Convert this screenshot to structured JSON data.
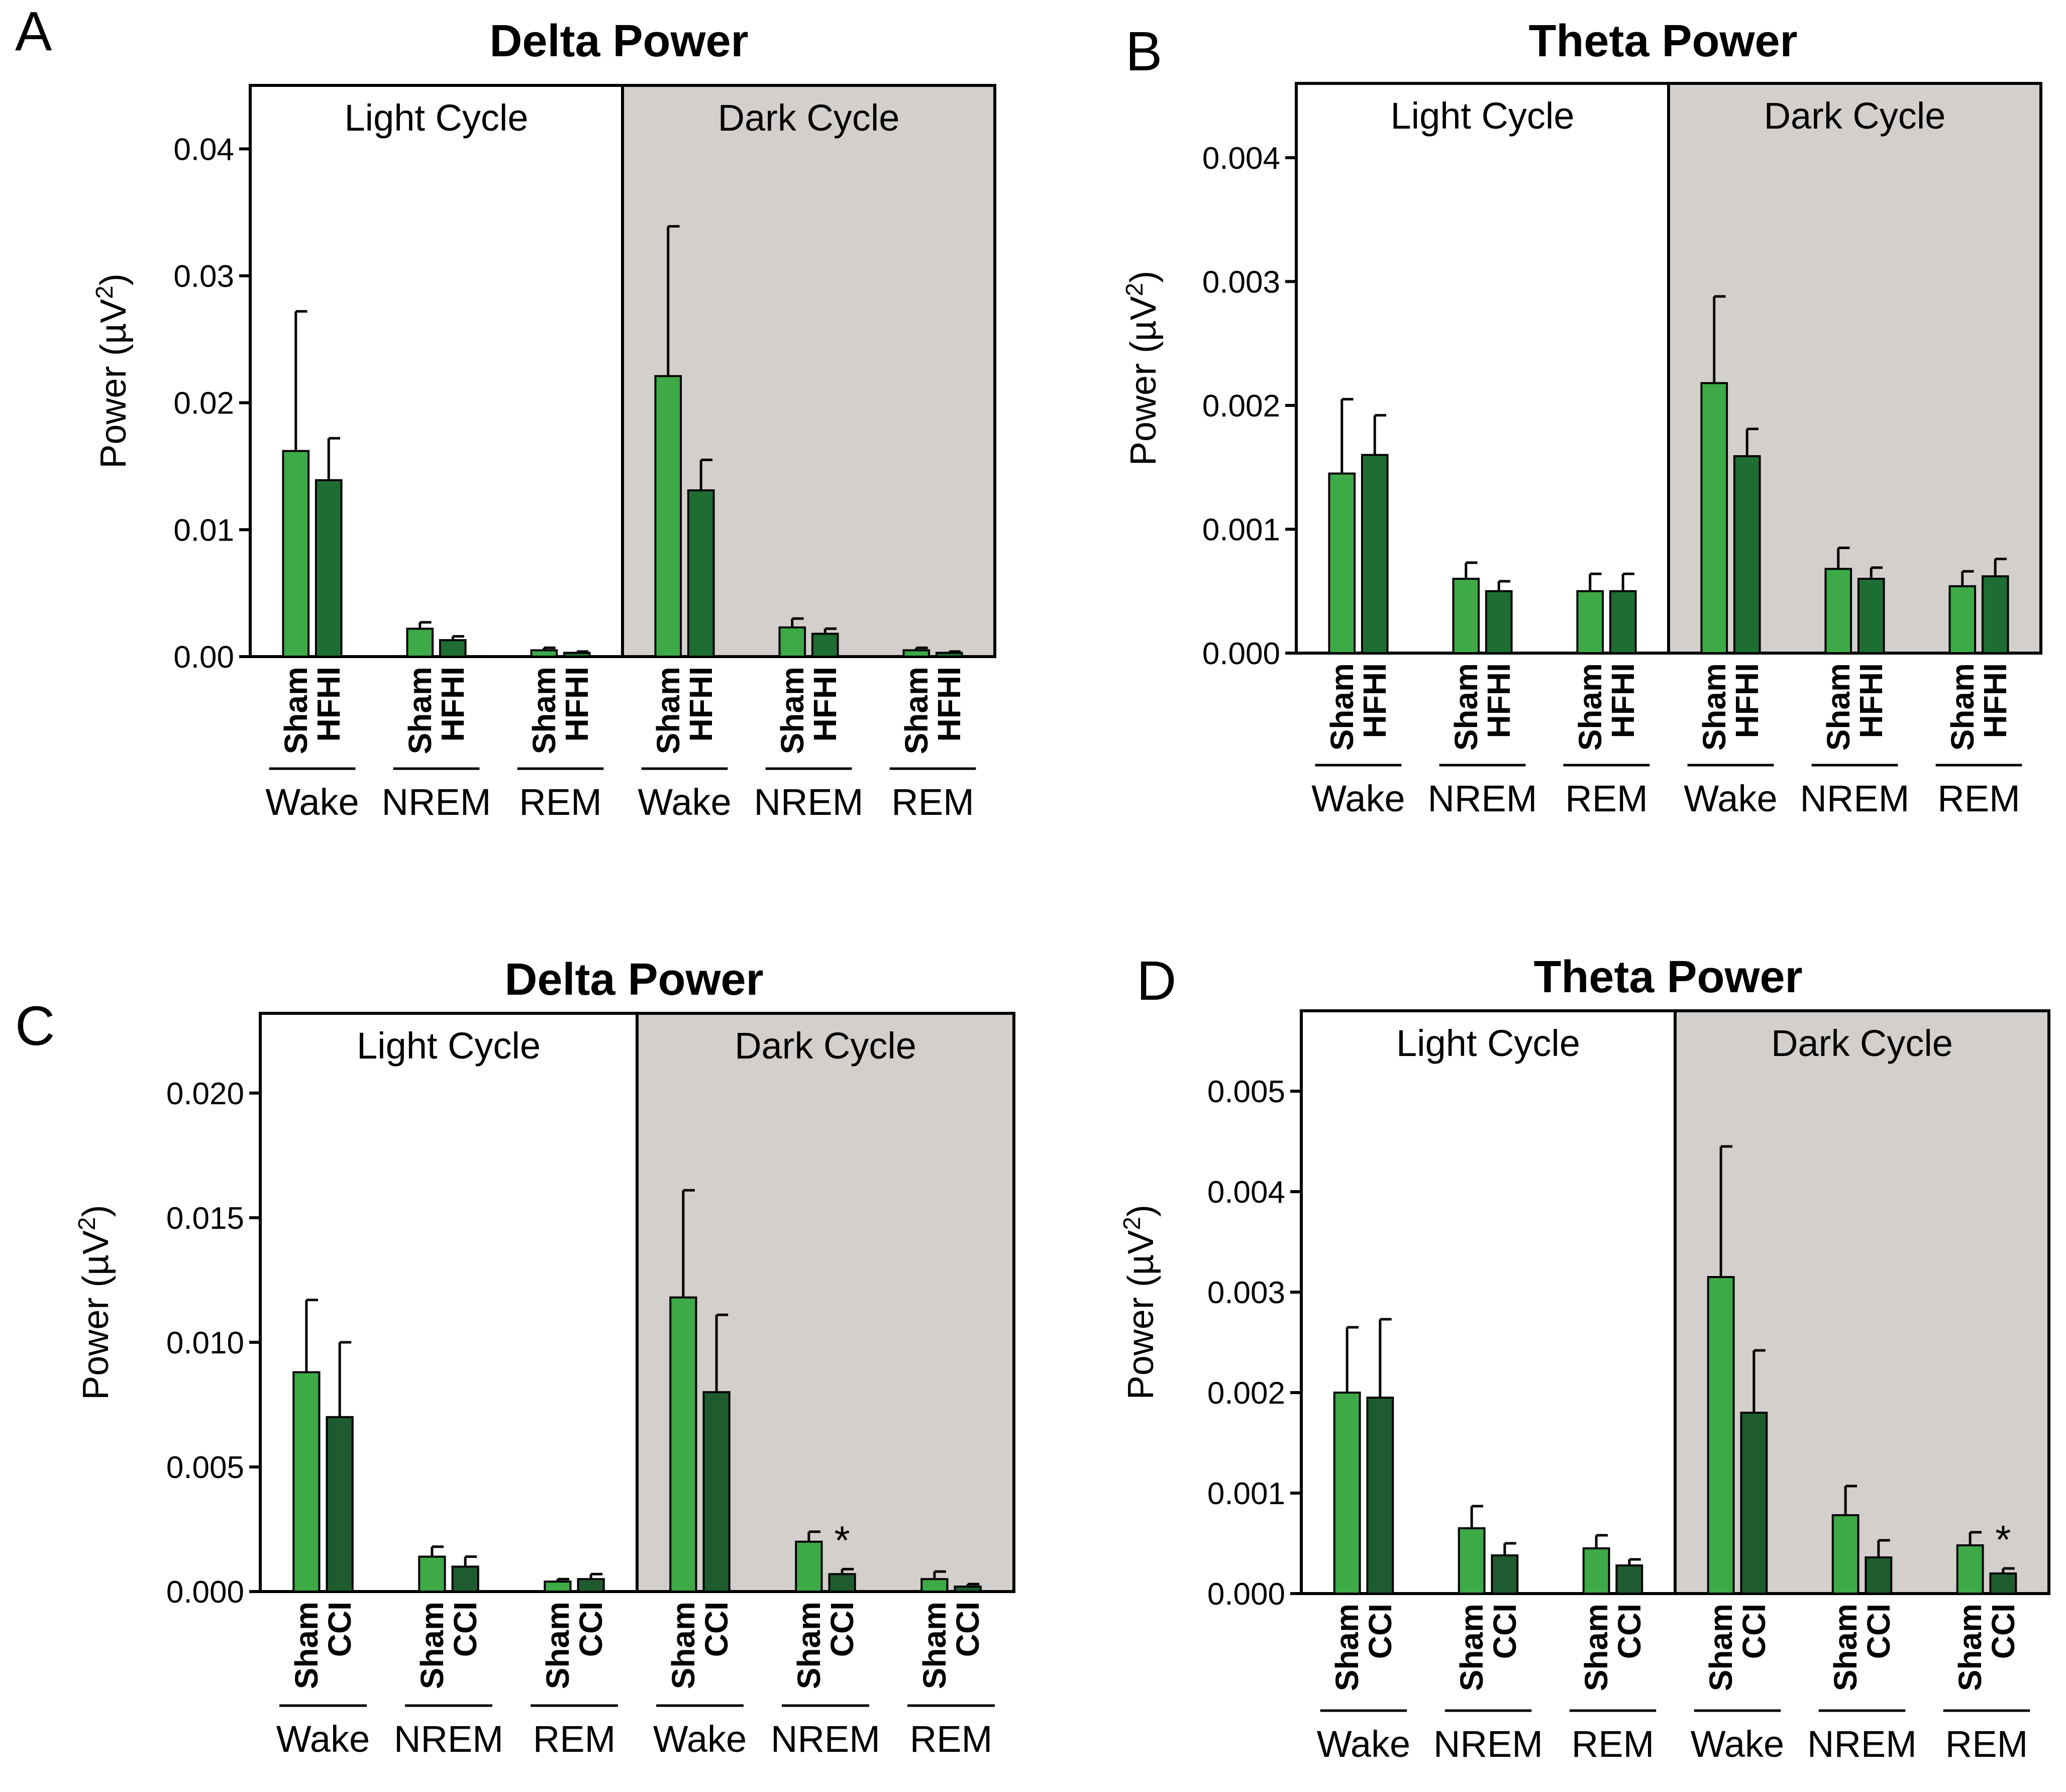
{
  "chart_data": [
    {
      "type": "bar",
      "panel_label": "A",
      "title": "Delta Power",
      "ylabel": "Power (µV²)",
      "ylabel_text": "Power (µV",
      "ylabel_sup": "2",
      "ylabel_end": ")",
      "ylim": [
        0,
        0.045
      ],
      "yticks": [
        "0.00",
        "0.01",
        "0.02",
        "0.03",
        "0.04"
      ],
      "ytick_values": [
        0,
        0.01,
        0.02,
        0.03,
        0.04
      ],
      "cycles": [
        "Light Cycle",
        "Dark Cycle"
      ],
      "states": [
        "Wake",
        "NREM",
        "REM"
      ],
      "groups": [
        "Sham",
        "HFHI"
      ],
      "series": [
        {
          "name": "Sham",
          "color": "#3DAA47",
          "values": [
            0.0162,
            0.0022,
            0.0005,
            0.0221,
            0.0023,
            0.0005
          ],
          "errors": [
            0.011,
            0.0005,
            0.0002,
            0.0118,
            0.0007,
            0.0002
          ]
        },
        {
          "name": "HFHI",
          "color": "#1E6E33",
          "values": [
            0.0139,
            0.0013,
            0.0003,
            0.0131,
            0.0018,
            0.0003
          ],
          "errors": [
            0.0033,
            0.0003,
            0.0001,
            0.0024,
            0.0004,
            0.0001
          ]
        }
      ],
      "annotations": []
    },
    {
      "type": "bar",
      "panel_label": "B",
      "title": "Theta Power",
      "ylabel": "Power (µV²)",
      "ylabel_text": "Power (µV",
      "ylabel_sup": "2",
      "ylabel_end": ")",
      "ylim": [
        0,
        0.0046
      ],
      "yticks": [
        "0.000",
        "0.001",
        "0.002",
        "0.003",
        "0.004"
      ],
      "ytick_values": [
        0,
        0.001,
        0.002,
        0.003,
        0.004
      ],
      "cycles": [
        "Light Cycle",
        "Dark Cycle"
      ],
      "states": [
        "Wake",
        "NREM",
        "REM"
      ],
      "groups": [
        "Sham",
        "HFHI"
      ],
      "series": [
        {
          "name": "Sham",
          "color": "#3DAA47",
          "values": [
            0.00145,
            0.0006,
            0.0005,
            0.00218,
            0.00068,
            0.00054
          ],
          "errors": [
            0.0006,
            0.00013,
            0.00014,
            0.0007,
            0.00017,
            0.00012
          ]
        },
        {
          "name": "HFHI",
          "color": "#1E6E33",
          "values": [
            0.0016,
            0.0005,
            0.0005,
            0.00159,
            0.0006,
            0.00062
          ],
          "errors": [
            0.00032,
            8e-05,
            0.00014,
            0.00022,
            9e-05,
            0.00014
          ]
        }
      ],
      "annotations": []
    },
    {
      "type": "bar",
      "panel_label": "C",
      "title": "Delta Power",
      "ylabel": "Power (µV²)",
      "ylabel_text": "Power (µV",
      "ylabel_sup": "2",
      "ylabel_end": ")",
      "ylim": [
        0,
        0.0232
      ],
      "yticks": [
        "0.000",
        "0.005",
        "0.010",
        "0.015",
        "0.020"
      ],
      "ytick_values": [
        0,
        0.005,
        0.01,
        0.015,
        0.02
      ],
      "cycles": [
        "Light Cycle",
        "Dark Cycle"
      ],
      "states": [
        "Wake",
        "NREM",
        "REM"
      ],
      "groups": [
        "Sham",
        "CCI"
      ],
      "series": [
        {
          "name": "Sham",
          "color": "#3DAA47",
          "values": [
            0.0088,
            0.0014,
            0.0004,
            0.0118,
            0.002,
            0.0005
          ],
          "errors": [
            0.0029,
            0.0004,
            0.0001,
            0.0043,
            0.0004,
            0.0003
          ]
        },
        {
          "name": "CCI",
          "color": "#1E5C30",
          "values": [
            0.007,
            0.001,
            0.0005,
            0.008,
            0.0007,
            0.0002
          ],
          "errors": [
            0.003,
            0.0004,
            0.0002,
            0.0031,
            0.0002,
            0.0001
          ]
        }
      ],
      "annotations": [
        {
          "series": "CCI",
          "index": 4,
          "text": "*"
        }
      ]
    },
    {
      "type": "bar",
      "panel_label": "D",
      "title": "Theta Power",
      "ylabel": "Power (µV²)",
      "ylabel_text": "Power (µV",
      "ylabel_sup": "2",
      "ylabel_end": ")",
      "ylim": [
        0,
        0.0058
      ],
      "yticks": [
        "0.000",
        "0.001",
        "0.002",
        "0.003",
        "0.004",
        "0.005"
      ],
      "ytick_values": [
        0,
        0.001,
        0.002,
        0.003,
        0.004,
        0.005
      ],
      "cycles": [
        "Light Cycle",
        "Dark Cycle"
      ],
      "states": [
        "Wake",
        "NREM",
        "REM"
      ],
      "groups": [
        "Sham",
        "CCI"
      ],
      "series": [
        {
          "name": "Sham",
          "color": "#3DAA47",
          "values": [
            0.002,
            0.00065,
            0.00045,
            0.00315,
            0.00078,
            0.00048
          ],
          "errors": [
            0.00065,
            0.00022,
            0.00013,
            0.0013,
            0.00029,
            0.00013
          ]
        },
        {
          "name": "CCI",
          "color": "#1E5C30",
          "values": [
            0.00195,
            0.00038,
            0.00028,
            0.0018,
            0.00036,
            0.0002
          ],
          "errors": [
            0.00078,
            0.00012,
            6e-05,
            0.00062,
            0.00017,
            5e-05
          ]
        }
      ],
      "annotations": [
        {
          "series": "CCI",
          "index": 5,
          "text": "*"
        }
      ]
    }
  ]
}
